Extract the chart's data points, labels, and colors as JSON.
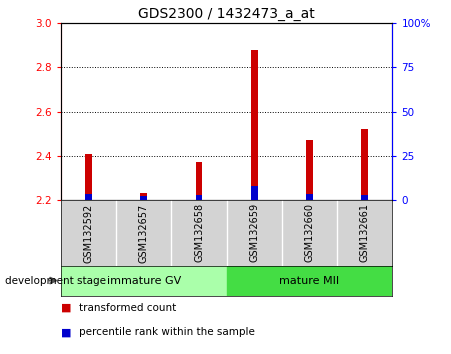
{
  "title": "GDS2300 / 1432473_a_at",
  "categories": [
    "GSM132592",
    "GSM132657",
    "GSM132658",
    "GSM132659",
    "GSM132660",
    "GSM132661"
  ],
  "red_values": [
    2.41,
    2.23,
    2.37,
    2.88,
    2.47,
    2.52
  ],
  "blue_percentiles": [
    3.5,
    2.5,
    3.0,
    8.0,
    3.5,
    3.0
  ],
  "baseline": 2.2,
  "ylim_left": [
    2.2,
    3.0
  ],
  "ylim_right": [
    0,
    100
  ],
  "yticks_left": [
    2.2,
    2.4,
    2.6,
    2.8,
    3.0
  ],
  "yticks_right": [
    0,
    25,
    50,
    75,
    100
  ],
  "ytick_labels_right": [
    "0",
    "25",
    "50",
    "75",
    "100%"
  ],
  "bar_width": 0.12,
  "blue_bar_width": 0.12,
  "red_color": "#CC0000",
  "blue_color": "#0000CC",
  "plot_bg": "#ffffff",
  "label_bg": "#d3d3d3",
  "group_bg_immature": "#aaffaa",
  "group_bg_mature": "#44dd44",
  "legend_red": "transformed count",
  "legend_blue": "percentile rank within the sample",
  "dev_stage_label": "development stage",
  "title_fontsize": 10,
  "tick_fontsize": 7.5,
  "cat_fontsize": 7,
  "group_fontsize": 8,
  "legend_fontsize": 7.5
}
